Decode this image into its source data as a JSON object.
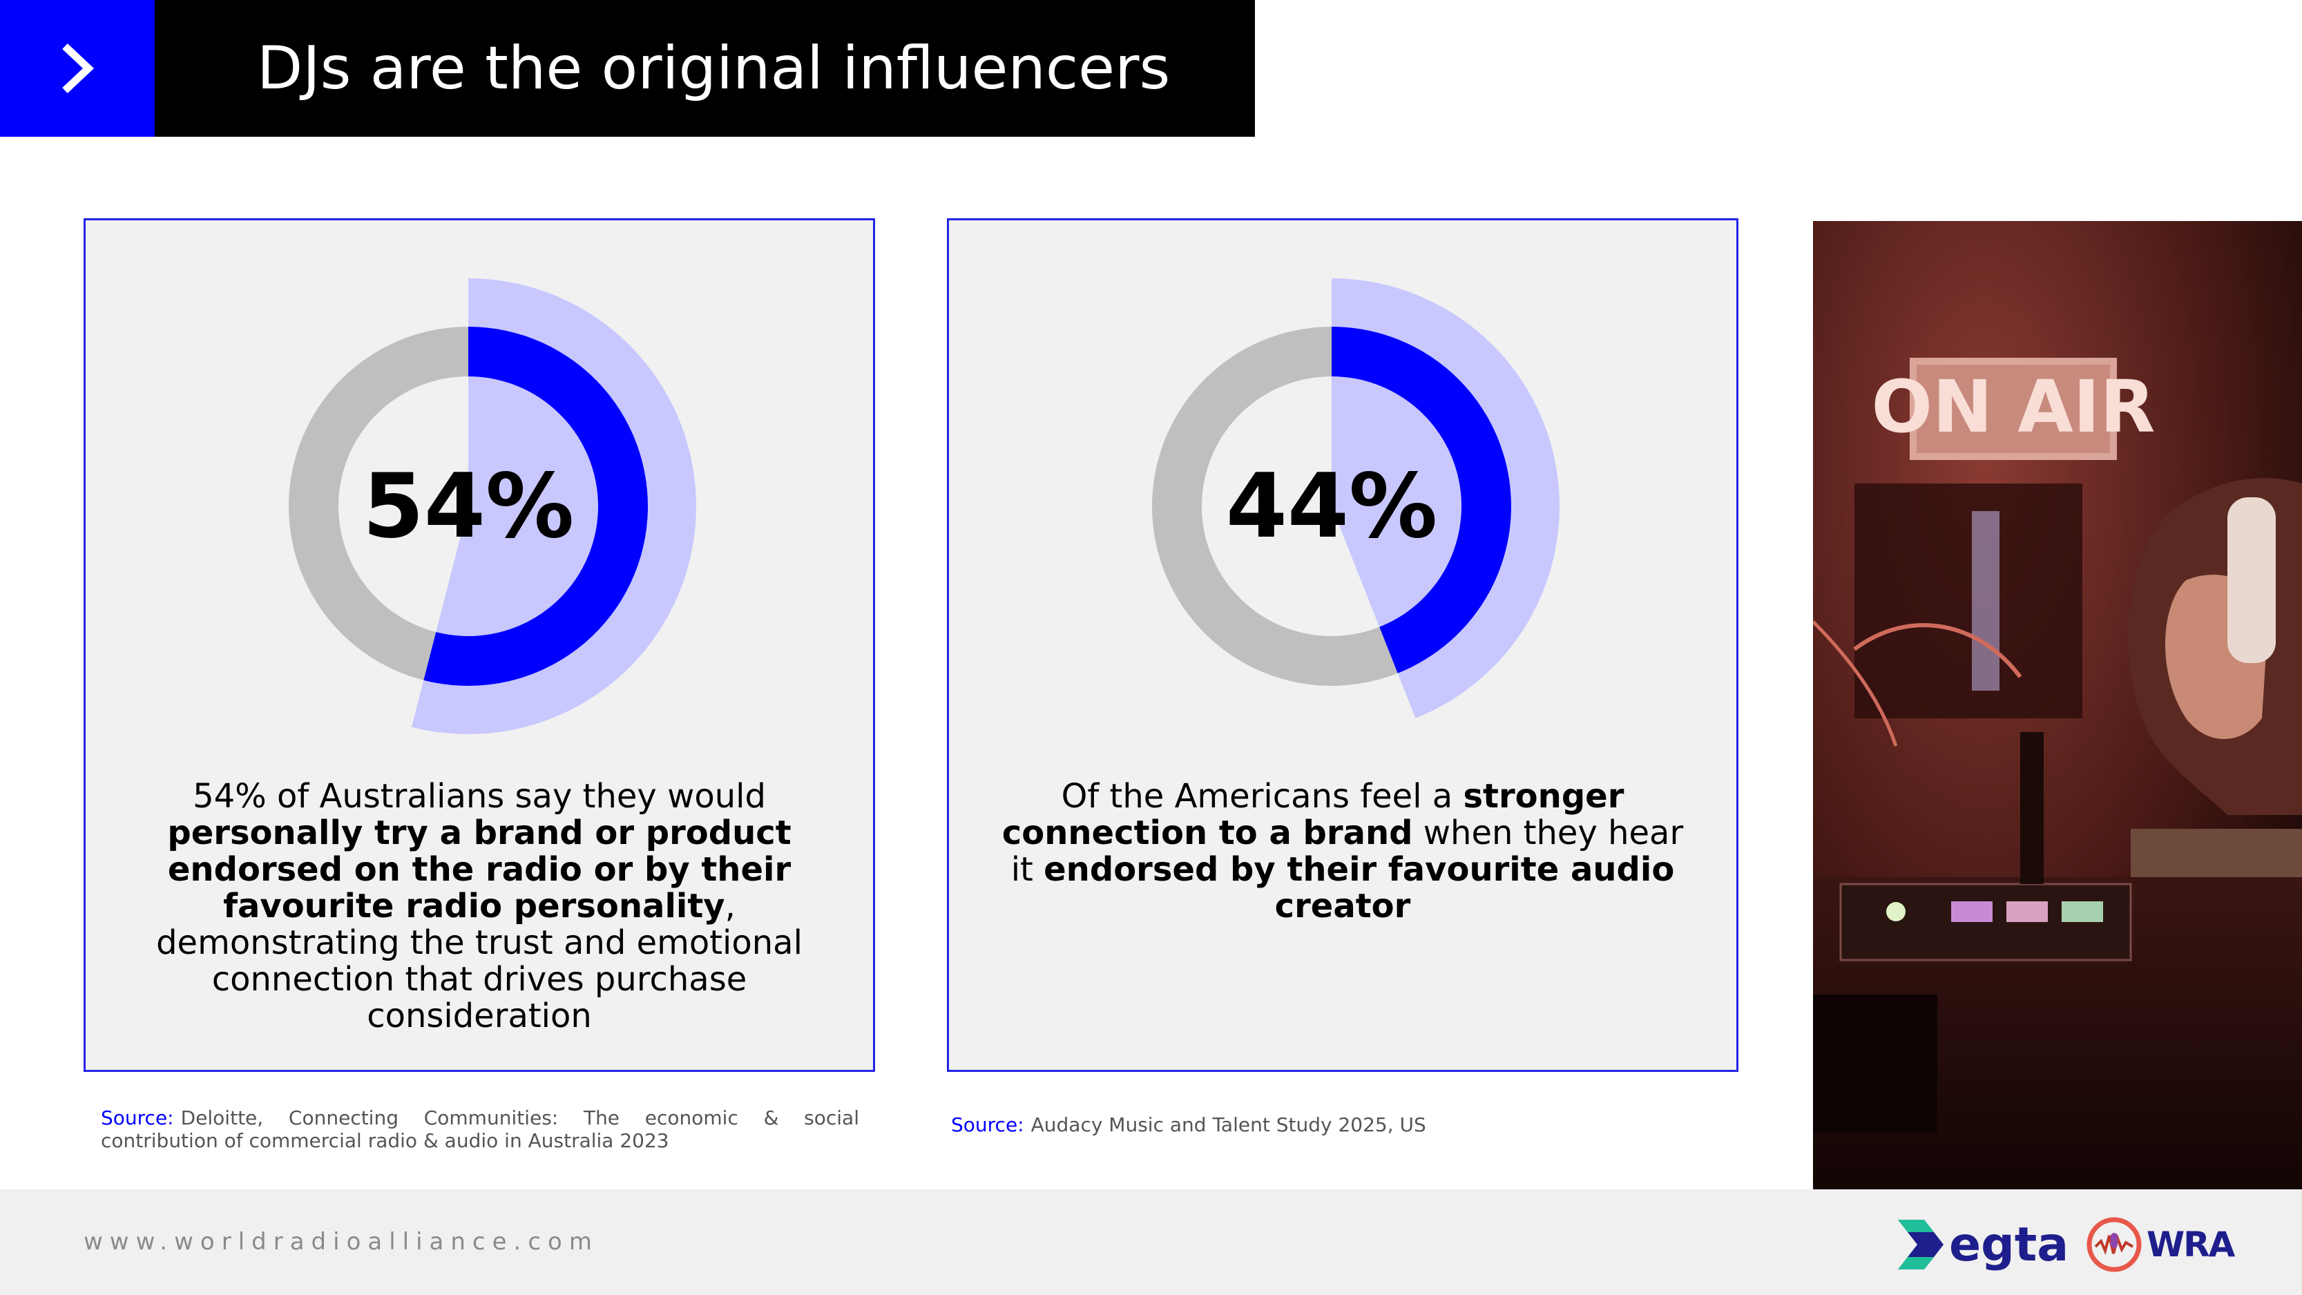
{
  "header": {
    "title": "DJs are the original influencers",
    "accent_color": "#0000ff",
    "icon": "chevron-right-icon"
  },
  "chart_data": [
    {
      "type": "pie",
      "subtype": "donut",
      "center_label": "54%",
      "values": [
        54,
        46
      ],
      "colors": {
        "value": "#0000ff",
        "remainder": "#bfbfbf",
        "highlight": "#c8c8ff"
      }
    },
    {
      "type": "pie",
      "subtype": "donut",
      "center_label": "44%",
      "values": [
        44,
        56
      ],
      "colors": {
        "value": "#0000ff",
        "remainder": "#bfbfbf",
        "highlight": "#c8c8ff"
      }
    }
  ],
  "card1": {
    "text": [
      {
        "t": "54% of Australians say they would ",
        "b": false
      },
      {
        "t": "personally try a brand or product endorsed on the radio or by their favourite radio personality",
        "b": true
      },
      {
        "t": ", demonstrating the trust and emotional connection that drives purchase consideration",
        "b": false
      }
    ]
  },
  "card2": {
    "text": [
      {
        "t": "Of the Americans feel a ",
        "b": false
      },
      {
        "t": "stronger connection to a brand",
        "b": true
      },
      {
        "t": " when they hear it ",
        "b": false
      },
      {
        "t": "endorsed by their favourite audio creator",
        "b": true
      }
    ]
  },
  "sources": [
    {
      "label": "Source:",
      "text": "Deloitte, Connecting Communities: The economic & social contribution of commercial radio & audio in Australia 2023"
    },
    {
      "label": "Source:",
      "text": "Audacy Music and Talent Study 2025, US"
    }
  ],
  "photo": {
    "sign_text": "ON AIR"
  },
  "footer": {
    "url": "www.worldradioalliance.com",
    "logo1": "egta",
    "logo2": "WRA"
  }
}
